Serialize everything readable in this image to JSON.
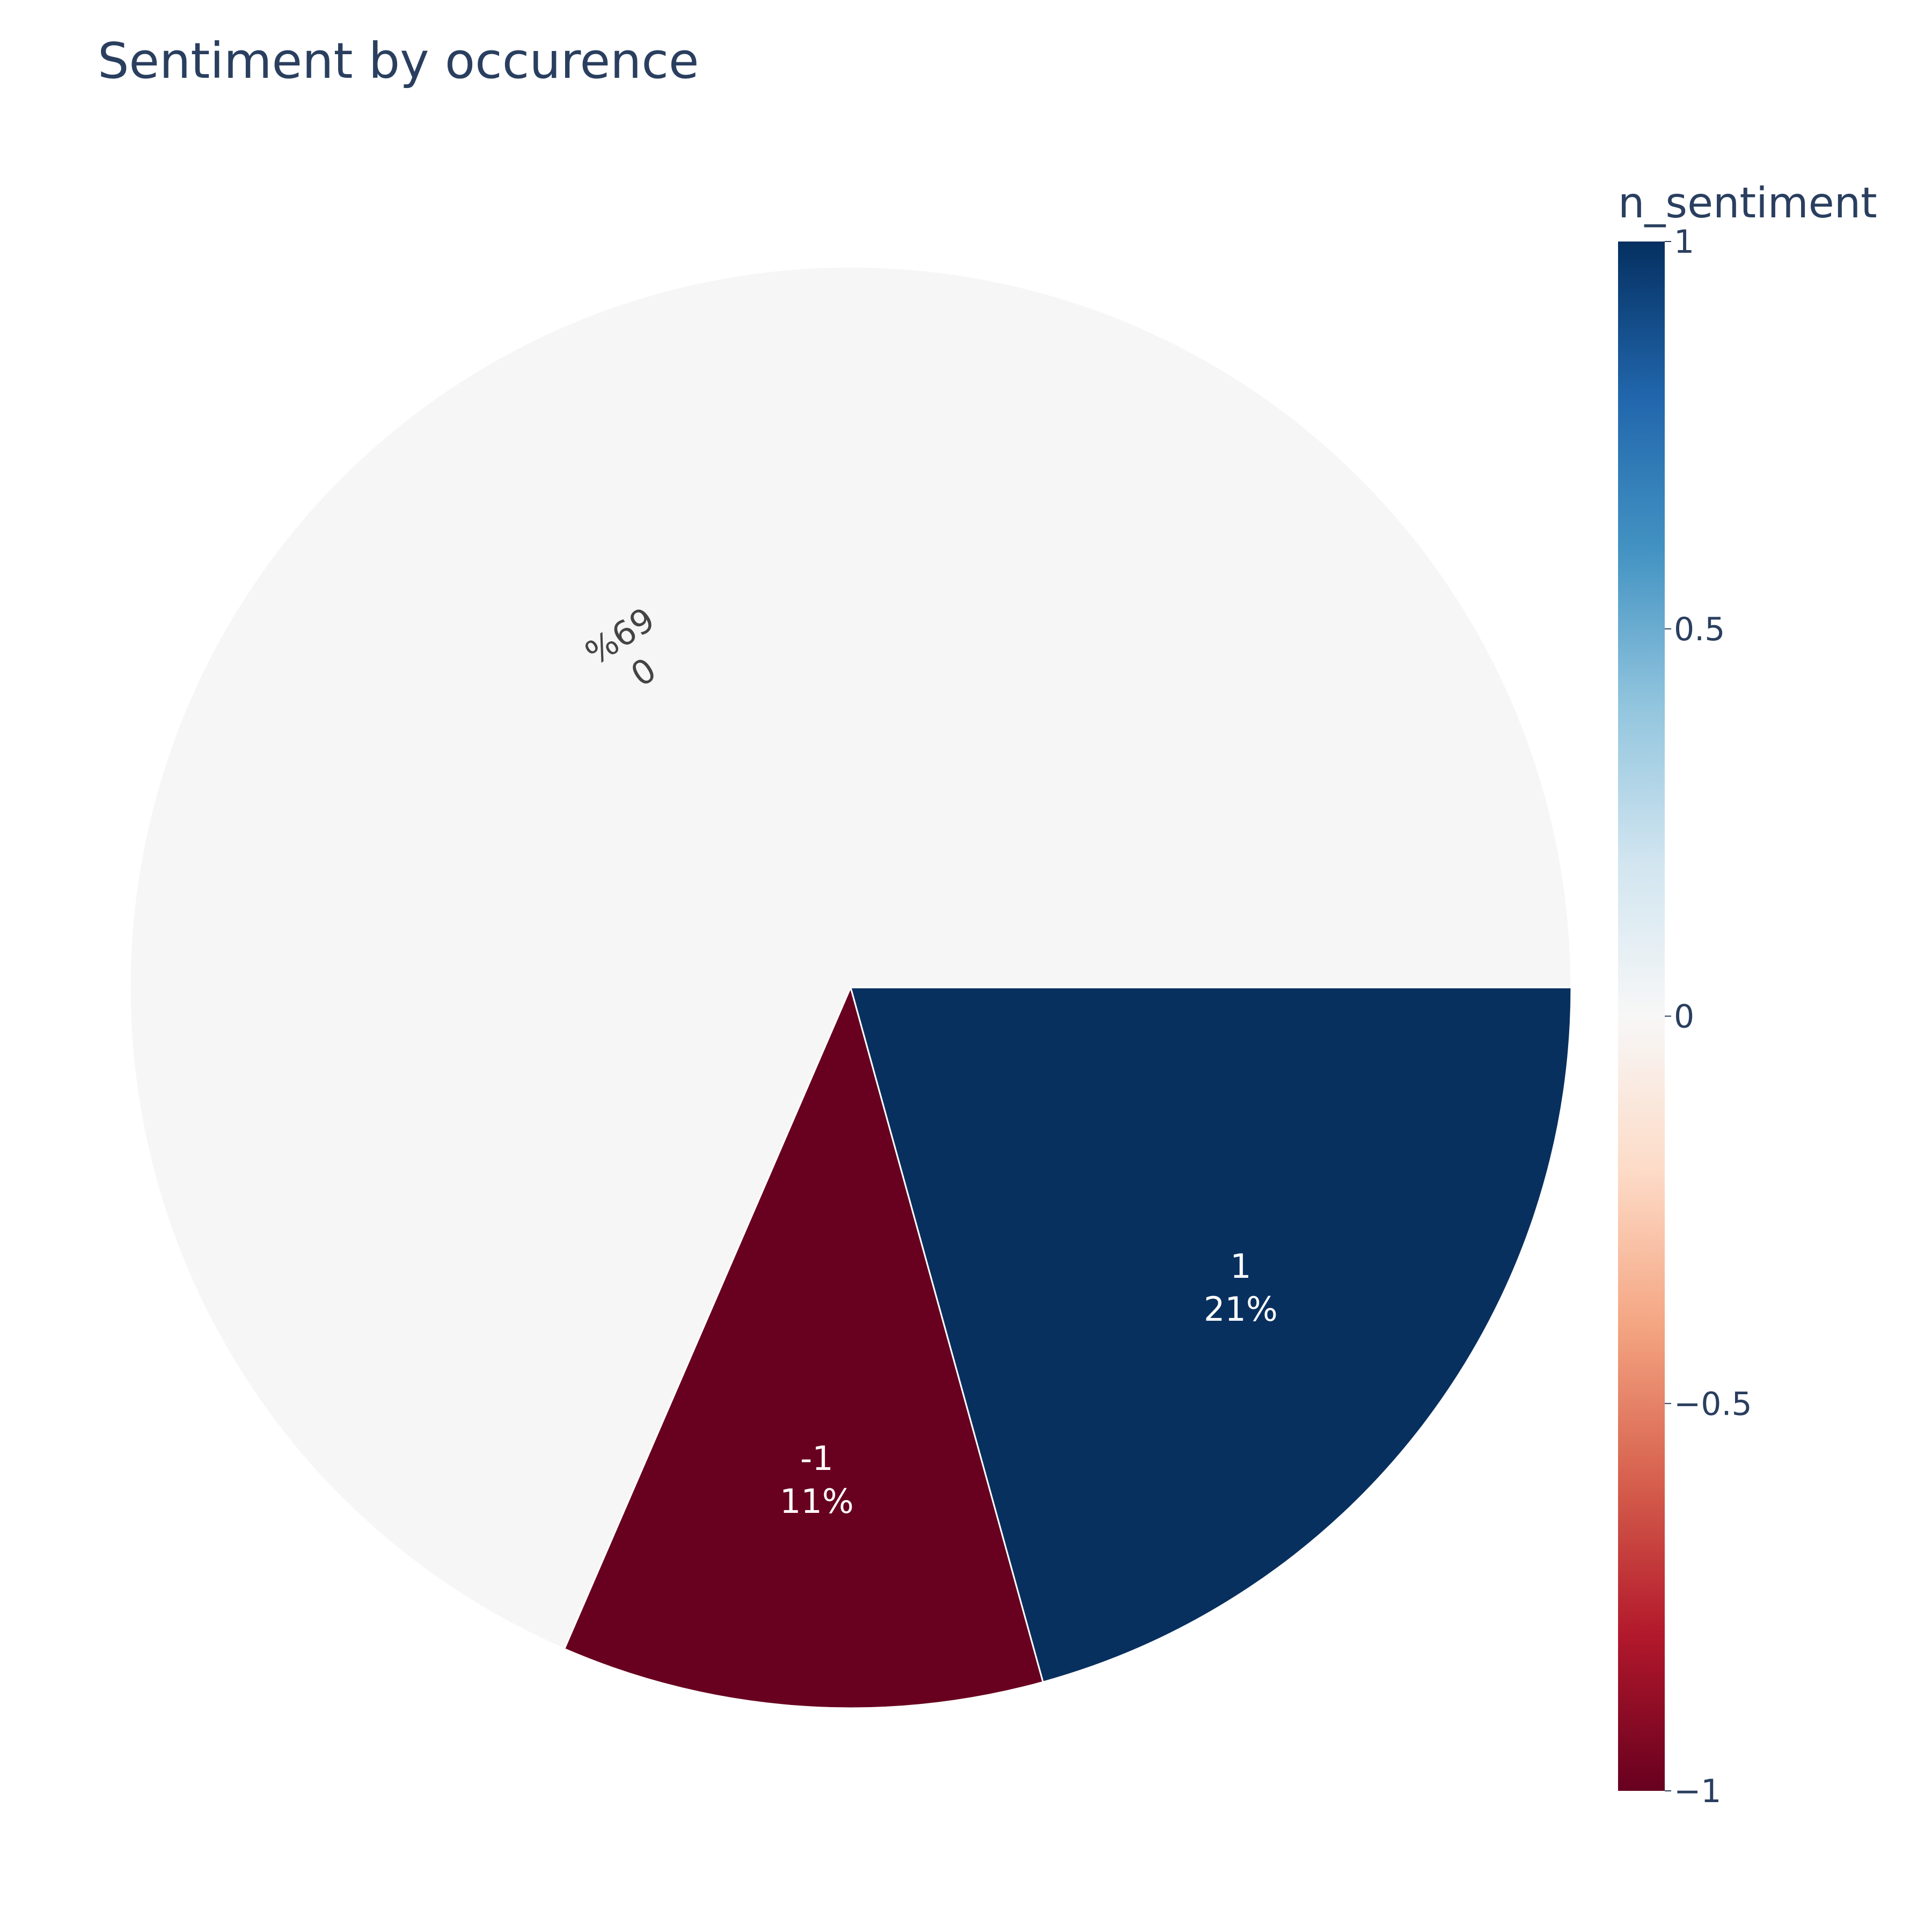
{
  "chart_data": {
    "type": "pie",
    "title": "Sentiment by occurence",
    "colorbar": {
      "title": "n_sentiment",
      "range": [
        -1,
        1
      ],
      "ticks": [
        {
          "value": 1,
          "label": "1"
        },
        {
          "value": 0.5,
          "label": "0.5"
        },
        {
          "value": 0,
          "label": "0"
        },
        {
          "value": -0.5,
          "label": "−0.5"
        },
        {
          "value": -1,
          "label": "−1"
        }
      ],
      "colorscale": [
        {
          "stop": 0,
          "color": "#67001f"
        },
        {
          "stop": 0.1,
          "color": "#b2182b"
        },
        {
          "stop": 0.2,
          "color": "#d6604d"
        },
        {
          "stop": 0.3,
          "color": "#f4a582"
        },
        {
          "stop": 0.4,
          "color": "#fddbc7"
        },
        {
          "stop": 0.5,
          "color": "#f7f7f7"
        },
        {
          "stop": 0.6,
          "color": "#d1e5f0"
        },
        {
          "stop": 0.7,
          "color": "#92c5de"
        },
        {
          "stop": 0.8,
          "color": "#4393c3"
        },
        {
          "stop": 0.9,
          "color": "#2166ac"
        },
        {
          "stop": 1,
          "color": "#053061"
        }
      ]
    },
    "slices": [
      {
        "label": "0",
        "percent_label": "69%",
        "value": 68.5,
        "sentiment": 0,
        "color": "#f6f6f6",
        "text_color": "#444444"
      },
      {
        "label": "1",
        "percent_label": "21%",
        "value": 20.7,
        "sentiment": 1,
        "color": "#08305f",
        "text_color": "#ffffff"
      },
      {
        "label": "-1",
        "percent_label": "11%",
        "value": 10.8,
        "sentiment": -1,
        "color": "#68001f",
        "text_color": "#ffffff"
      }
    ]
  }
}
